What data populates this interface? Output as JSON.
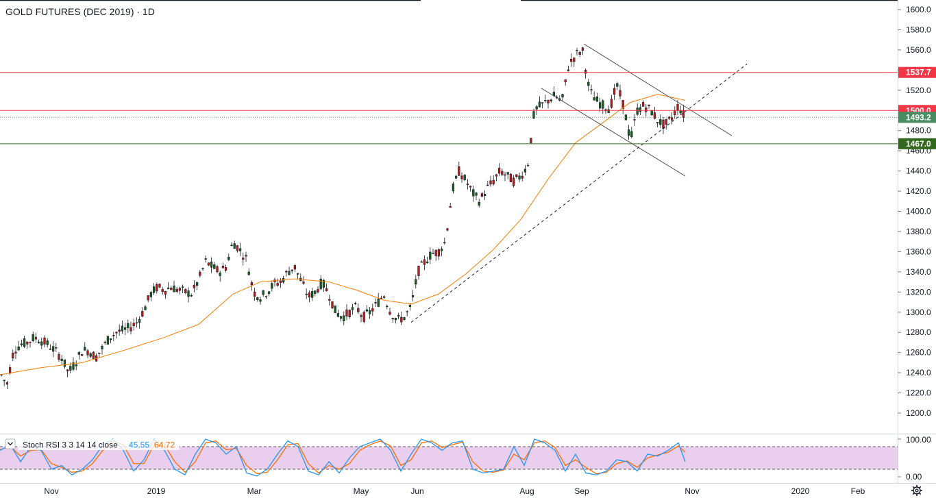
{
  "chart_data": {
    "type": "candlestick",
    "title": "GOLD FUTURES (DEC 2019) · 1D",
    "price_axis": {
      "min": 1190,
      "max": 1605,
      "ticks": [
        "1600.0",
        "1580.0",
        "1560.0",
        "1540.0",
        "1520.0",
        "1500.0",
        "1480.0",
        "1460.0",
        "1440.0",
        "1420.0",
        "1400.0",
        "1380.0",
        "1360.0",
        "1340.0",
        "1320.0",
        "1300.0",
        "1280.0",
        "1260.0",
        "1240.0",
        "1220.0",
        "1200.0"
      ],
      "tick_values": [
        1600,
        1580,
        1560,
        1540,
        1520,
        1500,
        1480,
        1460,
        1440,
        1420,
        1400,
        1380,
        1360,
        1340,
        1320,
        1300,
        1280,
        1260,
        1240,
        1220,
        1200
      ]
    },
    "time_axis": {
      "labels": [
        "Nov",
        "2019",
        "Mar",
        "May",
        "Jun",
        "Aug",
        "Sep",
        "Nov",
        "2020",
        "Feb"
      ]
    },
    "levels": [
      {
        "label": "1537.7",
        "value": 1537.7,
        "color": "#f23645"
      },
      {
        "label": "1500.0",
        "value": 1500.0,
        "color": "#f23645"
      },
      {
        "label": "1493.2",
        "value": 1493.2,
        "color": "#4a8a60"
      },
      {
        "label": "1467.0",
        "value": 1467.0,
        "color": "#33691e"
      }
    ],
    "price_path": [
      [
        0,
        1240
      ],
      [
        10,
        1228
      ],
      [
        20,
        1262
      ],
      [
        30,
        1268
      ],
      [
        40,
        1270
      ],
      [
        50,
        1275
      ],
      [
        60,
        1272
      ],
      [
        70,
        1268
      ],
      [
        80,
        1262
      ],
      [
        90,
        1255
      ],
      [
        100,
        1240
      ],
      [
        110,
        1250
      ],
      [
        120,
        1262
      ],
      [
        130,
        1262
      ],
      [
        140,
        1255
      ],
      [
        150,
        1265
      ],
      [
        160,
        1275
      ],
      [
        170,
        1280
      ],
      [
        180,
        1282
      ],
      [
        190,
        1285
      ],
      [
        200,
        1290
      ],
      [
        210,
        1302
      ],
      [
        220,
        1318
      ],
      [
        230,
        1325
      ],
      [
        240,
        1322
      ],
      [
        250,
        1325
      ],
      [
        260,
        1322
      ],
      [
        270,
        1320
      ],
      [
        280,
        1318
      ],
      [
        290,
        1332
      ],
      [
        300,
        1350
      ],
      [
        310,
        1345
      ],
      [
        320,
        1340
      ],
      [
        330,
        1345
      ],
      [
        340,
        1370
      ],
      [
        350,
        1362
      ],
      [
        360,
        1352
      ],
      [
        370,
        1320
      ],
      [
        380,
        1315
      ],
      [
        390,
        1320
      ],
      [
        400,
        1328
      ],
      [
        410,
        1330
      ],
      [
        420,
        1340
      ],
      [
        430,
        1345
      ],
      [
        440,
        1330
      ],
      [
        450,
        1315
      ],
      [
        460,
        1320
      ],
      [
        470,
        1330
      ],
      [
        480,
        1318
      ],
      [
        490,
        1300
      ],
      [
        500,
        1295
      ],
      [
        510,
        1300
      ],
      [
        520,
        1305
      ],
      [
        530,
        1295
      ],
      [
        540,
        1300
      ],
      [
        550,
        1308
      ],
      [
        560,
        1318
      ],
      [
        570,
        1300
      ],
      [
        580,
        1292
      ],
      [
        590,
        1295
      ],
      [
        600,
        1305
      ],
      [
        610,
        1340
      ],
      [
        620,
        1350
      ],
      [
        630,
        1358
      ],
      [
        640,
        1360
      ],
      [
        650,
        1370
      ],
      [
        660,
        1420
      ],
      [
        670,
        1440
      ],
      [
        680,
        1430
      ],
      [
        690,
        1418
      ],
      [
        700,
        1410
      ],
      [
        710,
        1422
      ],
      [
        720,
        1430
      ],
      [
        730,
        1440
      ],
      [
        740,
        1435
      ],
      [
        750,
        1430
      ],
      [
        760,
        1435
      ],
      [
        770,
        1445
      ],
      [
        780,
        1500
      ],
      [
        790,
        1505
      ],
      [
        800,
        1510
      ],
      [
        810,
        1515
      ],
      [
        820,
        1508
      ],
      [
        830,
        1545
      ],
      [
        840,
        1555
      ],
      [
        850,
        1560
      ],
      [
        860,
        1520
      ],
      [
        870,
        1510
      ],
      [
        880,
        1505
      ],
      [
        890,
        1502
      ],
      [
        900,
        1525
      ],
      [
        910,
        1505
      ],
      [
        920,
        1470
      ],
      [
        930,
        1500
      ],
      [
        940,
        1505
      ],
      [
        950,
        1500
      ],
      [
        960,
        1490
      ],
      [
        970,
        1485
      ],
      [
        980,
        1492
      ],
      [
        990,
        1505
      ],
      [
        1000,
        1493
      ]
    ],
    "annotations": [
      {
        "type": "channel-upper",
        "from": [
          852,
          1566
        ],
        "to": [
          1068,
          1475
        ]
      },
      {
        "type": "channel-lower",
        "from": [
          790,
          1522
        ],
        "to": [
          1000,
          1435
        ]
      },
      {
        "type": "trendline-dashed",
        "from": [
          600,
          1290
        ],
        "to": [
          1090,
          1546
        ]
      }
    ],
    "moving_average": [
      [
        0,
        1238
      ],
      [
        60,
        1245
      ],
      [
        120,
        1250
      ],
      [
        180,
        1262
      ],
      [
        240,
        1275
      ],
      [
        290,
        1288
      ],
      [
        340,
        1318
      ],
      [
        380,
        1330
      ],
      [
        430,
        1333
      ],
      [
        480,
        1330
      ],
      [
        520,
        1322
      ],
      [
        560,
        1312
      ],
      [
        600,
        1308
      ],
      [
        640,
        1318
      ],
      [
        680,
        1338
      ],
      [
        720,
        1362
      ],
      [
        760,
        1392
      ],
      [
        800,
        1432
      ],
      [
        840,
        1468
      ],
      [
        880,
        1488
      ],
      [
        920,
        1508
      ],
      [
        960,
        1516
      ],
      [
        1000,
        1510
      ]
    ],
    "indicator": {
      "name": "Stoch RSI 3 3 14 14 close",
      "k_value": "45.55",
      "d_value": "64.72",
      "k_color": "#2196f3",
      "d_color": "#ff6d00",
      "axis_labels": [
        "100.00",
        "0.00"
      ],
      "upper_band": 80,
      "lower_band": 20,
      "k_path": [
        [
          0,
          70
        ],
        [
          15,
          85
        ],
        [
          30,
          40
        ],
        [
          45,
          80
        ],
        [
          60,
          70
        ],
        [
          75,
          20
        ],
        [
          90,
          30
        ],
        [
          105,
          5
        ],
        [
          120,
          20
        ],
        [
          135,
          45
        ],
        [
          150,
          85
        ],
        [
          165,
          100
        ],
        [
          180,
          70
        ],
        [
          195,
          15
        ],
        [
          210,
          45
        ],
        [
          225,
          100
        ],
        [
          240,
          70
        ],
        [
          255,
          20
        ],
        [
          270,
          5
        ],
        [
          285,
          60
        ],
        [
          300,
          100
        ],
        [
          315,
          90
        ],
        [
          330,
          60
        ],
        [
          345,
          80
        ],
        [
          360,
          10
        ],
        [
          375,
          2
        ],
        [
          390,
          20
        ],
        [
          405,
          60
        ],
        [
          420,
          95
        ],
        [
          435,
          80
        ],
        [
          450,
          15
        ],
        [
          465,
          5
        ],
        [
          480,
          40
        ],
        [
          495,
          10
        ],
        [
          510,
          50
        ],
        [
          525,
          80
        ],
        [
          540,
          90
        ],
        [
          555,
          100
        ],
        [
          570,
          70
        ],
        [
          585,
          15
        ],
        [
          600,
          60
        ],
        [
          615,
          100
        ],
        [
          630,
          90
        ],
        [
          645,
          70
        ],
        [
          660,
          90
        ],
        [
          675,
          95
        ],
        [
          690,
          20
        ],
        [
          705,
          10
        ],
        [
          720,
          15
        ],
        [
          735,
          20
        ],
        [
          750,
          80
        ],
        [
          765,
          30
        ],
        [
          780,
          100
        ],
        [
          795,
          90
        ],
        [
          810,
          70
        ],
        [
          825,
          15
        ],
        [
          840,
          60
        ],
        [
          855,
          10
        ],
        [
          870,
          5
        ],
        [
          885,
          15
        ],
        [
          900,
          45
        ],
        [
          915,
          40
        ],
        [
          930,
          15
        ],
        [
          945,
          60
        ],
        [
          960,
          55
        ],
        [
          975,
          70
        ],
        [
          990,
          90
        ],
        [
          1000,
          40
        ]
      ],
      "d_path": [
        [
          0,
          72
        ],
        [
          15,
          80
        ],
        [
          30,
          55
        ],
        [
          45,
          70
        ],
        [
          60,
          72
        ],
        [
          75,
          35
        ],
        [
          90,
          25
        ],
        [
          105,
          12
        ],
        [
          120,
          15
        ],
        [
          135,
          35
        ],
        [
          150,
          70
        ],
        [
          165,
          95
        ],
        [
          180,
          85
        ],
        [
          195,
          35
        ],
        [
          210,
          35
        ],
        [
          225,
          85
        ],
        [
          240,
          85
        ],
        [
          255,
          40
        ],
        [
          270,
          12
        ],
        [
          285,
          40
        ],
        [
          300,
          90
        ],
        [
          315,
          95
        ],
        [
          330,
          72
        ],
        [
          345,
          75
        ],
        [
          360,
          30
        ],
        [
          375,
          8
        ],
        [
          390,
          12
        ],
        [
          405,
          45
        ],
        [
          420,
          85
        ],
        [
          435,
          88
        ],
        [
          450,
          35
        ],
        [
          465,
          10
        ],
        [
          480,
          30
        ],
        [
          495,
          20
        ],
        [
          510,
          35
        ],
        [
          525,
          70
        ],
        [
          540,
          85
        ],
        [
          555,
          95
        ],
        [
          570,
          82
        ],
        [
          585,
          30
        ],
        [
          600,
          45
        ],
        [
          615,
          90
        ],
        [
          630,
          95
        ],
        [
          645,
          78
        ],
        [
          660,
          85
        ],
        [
          675,
          92
        ],
        [
          690,
          40
        ],
        [
          705,
          15
        ],
        [
          720,
          12
        ],
        [
          735,
          18
        ],
        [
          750,
          60
        ],
        [
          765,
          45
        ],
        [
          780,
          90
        ],
        [
          795,
          95
        ],
        [
          810,
          78
        ],
        [
          825,
          30
        ],
        [
          840,
          45
        ],
        [
          855,
          25
        ],
        [
          870,
          8
        ],
        [
          885,
          12
        ],
        [
          900,
          35
        ],
        [
          915,
          42
        ],
        [
          930,
          25
        ],
        [
          945,
          50
        ],
        [
          960,
          58
        ],
        [
          975,
          65
        ],
        [
          990,
          82
        ],
        [
          1000,
          65
        ]
      ]
    }
  },
  "icons": {
    "settings": "gear-icon",
    "collapse": "chevron-down-icon"
  }
}
